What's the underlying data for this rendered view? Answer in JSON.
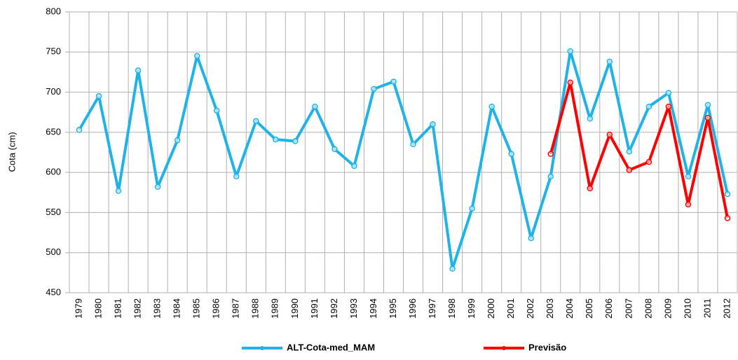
{
  "chart_data": {
    "type": "line",
    "y_label": "Cota (cm)",
    "categories": [
      "1979",
      "1980",
      "1981",
      "1982",
      "1983",
      "1984",
      "1985",
      "1986",
      "1987",
      "1988",
      "1989",
      "1990",
      "1991",
      "1992",
      "1993",
      "1994",
      "1995",
      "1996",
      "1997",
      "1998",
      "1999",
      "2000",
      "2001",
      "2002",
      "2003",
      "2004",
      "2005",
      "2006",
      "2007",
      "2008",
      "2009",
      "2010",
      "2011",
      "2012"
    ],
    "series": [
      {
        "name": "ALT-Cota-med_MAM",
        "color": "#1fb3e8",
        "values": [
          653,
          695,
          577,
          727,
          582,
          640,
          745,
          677,
          595,
          664,
          641,
          639,
          682,
          629,
          608,
          704,
          713,
          635,
          660,
          480,
          555,
          682,
          623,
          518,
          595,
          751,
          667,
          738,
          626,
          682,
          699,
          595,
          684,
          573
        ]
      },
      {
        "name": "Previsão",
        "color": "#ff0000",
        "values": [
          null,
          null,
          null,
          null,
          null,
          null,
          null,
          null,
          null,
          null,
          null,
          null,
          null,
          null,
          null,
          null,
          null,
          null,
          null,
          null,
          null,
          null,
          null,
          null,
          623,
          712,
          580,
          647,
          603,
          613,
          682,
          560,
          668,
          543
        ]
      }
    ],
    "ylim": [
      450,
      800
    ],
    "yticks": [
      450,
      500,
      550,
      600,
      650,
      700,
      750,
      800
    ],
    "grid": true
  }
}
